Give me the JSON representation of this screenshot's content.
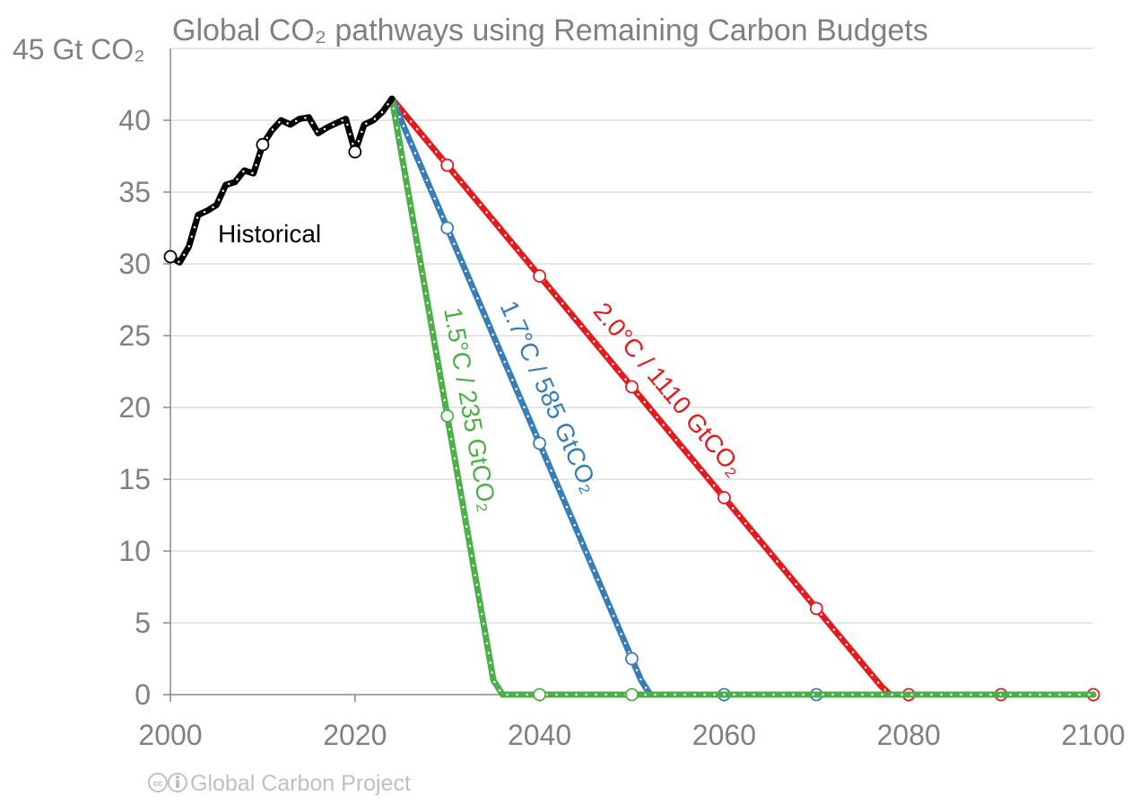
{
  "chart_data": {
    "type": "line",
    "title": "Global CO₂ pathways using Remaining Carbon Budgets",
    "ylabel": "45 Gt CO₂",
    "xlim": [
      2000,
      2100
    ],
    "ylim": [
      0,
      45
    ],
    "x_ticks": [
      2000,
      2020,
      2040,
      2060,
      2080,
      2100
    ],
    "y_ticks": [
      0,
      5,
      10,
      15,
      20,
      25,
      30,
      35,
      40
    ],
    "grid": "horizontal",
    "series": [
      {
        "name": "Historical",
        "color": "#000000",
        "x": [
          2000,
          2001,
          2002,
          2003,
          2004,
          2005,
          2006,
          2007,
          2008,
          2009,
          2010,
          2011,
          2012,
          2013,
          2014,
          2015,
          2016,
          2017,
          2018,
          2019,
          2020,
          2021,
          2022,
          2023,
          2024
        ],
        "y": [
          30.5,
          30.1,
          31.2,
          33.4,
          33.7,
          34.1,
          35.5,
          35.7,
          36.5,
          36.3,
          38.3,
          39.3,
          40.0,
          39.7,
          40.1,
          40.2,
          39.1,
          39.5,
          39.8,
          40.1,
          37.8,
          39.7,
          40.0,
          40.6,
          41.5
        ],
        "markers_x": [
          2000,
          2010,
          2020
        ]
      },
      {
        "name": "1.5°C / 235 GtCO₂",
        "color": "#4daf4a",
        "x": [
          2024,
          2035,
          2036,
          2100
        ],
        "y": [
          41.5,
          1.0,
          0,
          0
        ],
        "markers_x": [
          2030,
          2040,
          2050
        ]
      },
      {
        "name": "1.7°C / 585 GtCO₂",
        "color": "#377eb8",
        "x": [
          2024,
          2051,
          2052,
          2100
        ],
        "y": [
          41.5,
          1.0,
          0,
          0
        ],
        "markers_x": [
          2030,
          2040,
          2050,
          2060,
          2070
        ]
      },
      {
        "name": "2.0°C / 1110 GtCO₂",
        "color": "#e41a1c",
        "x": [
          2024,
          2077,
          2078,
          2100
        ],
        "y": [
          41.5,
          0.6,
          0,
          0
        ],
        "markers_x": [
          2030,
          2040,
          2050,
          2060,
          2070,
          2080,
          2090,
          2100
        ]
      }
    ]
  },
  "credit": "Global Carbon Project"
}
